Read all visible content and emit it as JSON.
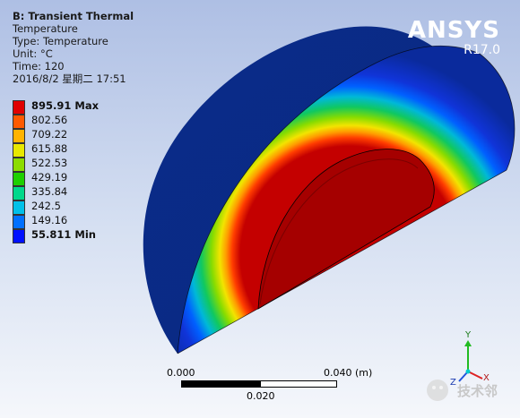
{
  "info": {
    "title": "B: Transient Thermal",
    "result": "Temperature",
    "type": "Type: Temperature",
    "unit": "Unit: °C",
    "time": "Time: 120",
    "timestamp": "2016/8/2 星期二 17:51"
  },
  "legend": [
    {
      "label": "895.91 Max",
      "color": "#e00000",
      "bold": true
    },
    {
      "label": "802.56",
      "color": "#ff5a00",
      "bold": false
    },
    {
      "label": "709.22",
      "color": "#ffb300",
      "bold": false
    },
    {
      "label": "615.88",
      "color": "#e8e800",
      "bold": false
    },
    {
      "label": "522.53",
      "color": "#8cdc00",
      "bold": false
    },
    {
      "label": "429.19",
      "color": "#1ed000",
      "bold": false
    },
    {
      "label": "335.84",
      "color": "#00d88c",
      "bold": false
    },
    {
      "label": "242.5",
      "color": "#00c0e8",
      "bold": false
    },
    {
      "label": "149.16",
      "color": "#0070ff",
      "bold": false
    },
    {
      "label": "55.811 Min",
      "color": "#0010ff",
      "bold": true
    }
  ],
  "brand": {
    "name": "ANSYS",
    "version": "R17.0"
  },
  "scale_bar": {
    "start": "0.000",
    "end": "0.040 (m)",
    "mid": "0.020"
  },
  "triad": {
    "y": "Y",
    "x": "X",
    "z": "Z"
  },
  "watermark": "技术邻",
  "colors": {
    "hot_core": "#a80000",
    "outer_body": "#0a2a86",
    "side_face": "#062678"
  }
}
